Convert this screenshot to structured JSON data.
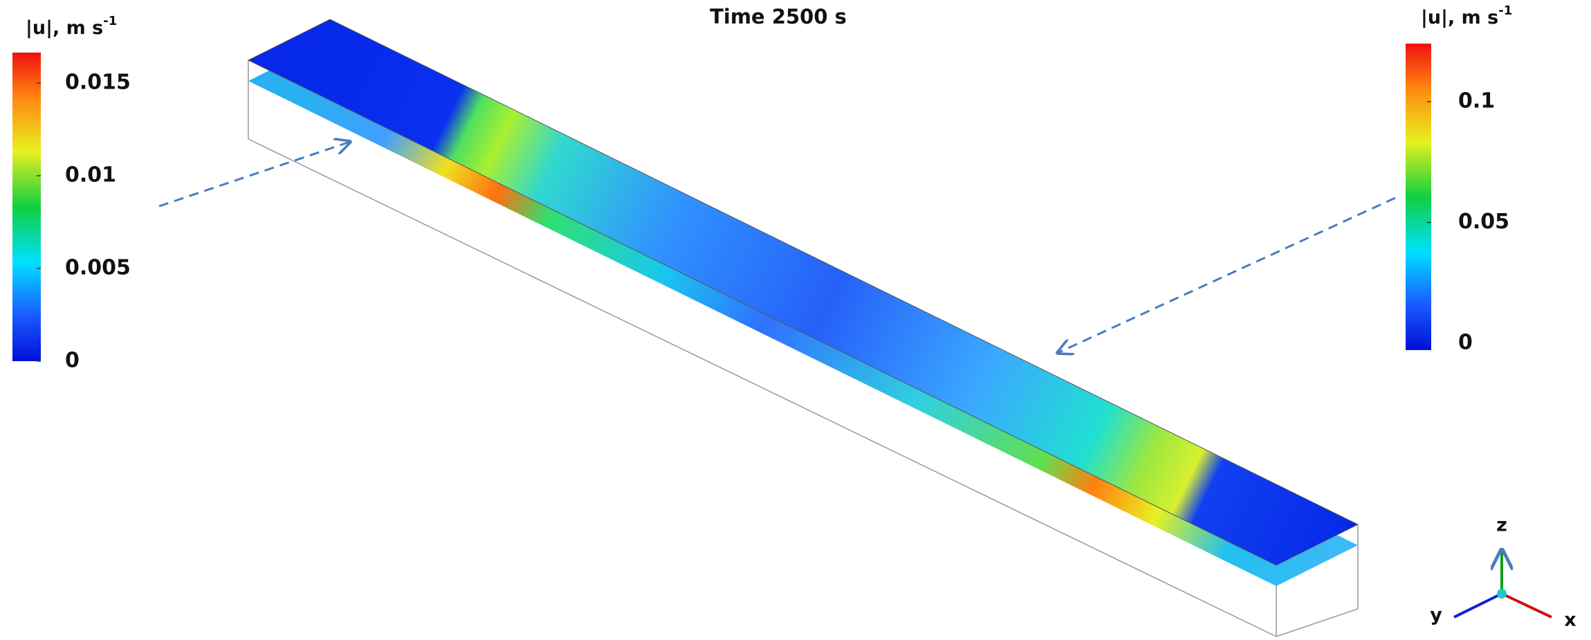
{
  "title": "Time 2500 s",
  "colorbars": [
    {
      "label": "|u|, m s",
      "label_superscript": "-1",
      "ticks": [
        0,
        0.005,
        0.01,
        0.015
      ]
    },
    {
      "label": "|u|, m s",
      "label_superscript": "-1",
      "ticks": [
        0,
        0.05,
        0.1
      ]
    }
  ],
  "axes": {
    "z": "z",
    "y": "y",
    "x": "x"
  }
}
